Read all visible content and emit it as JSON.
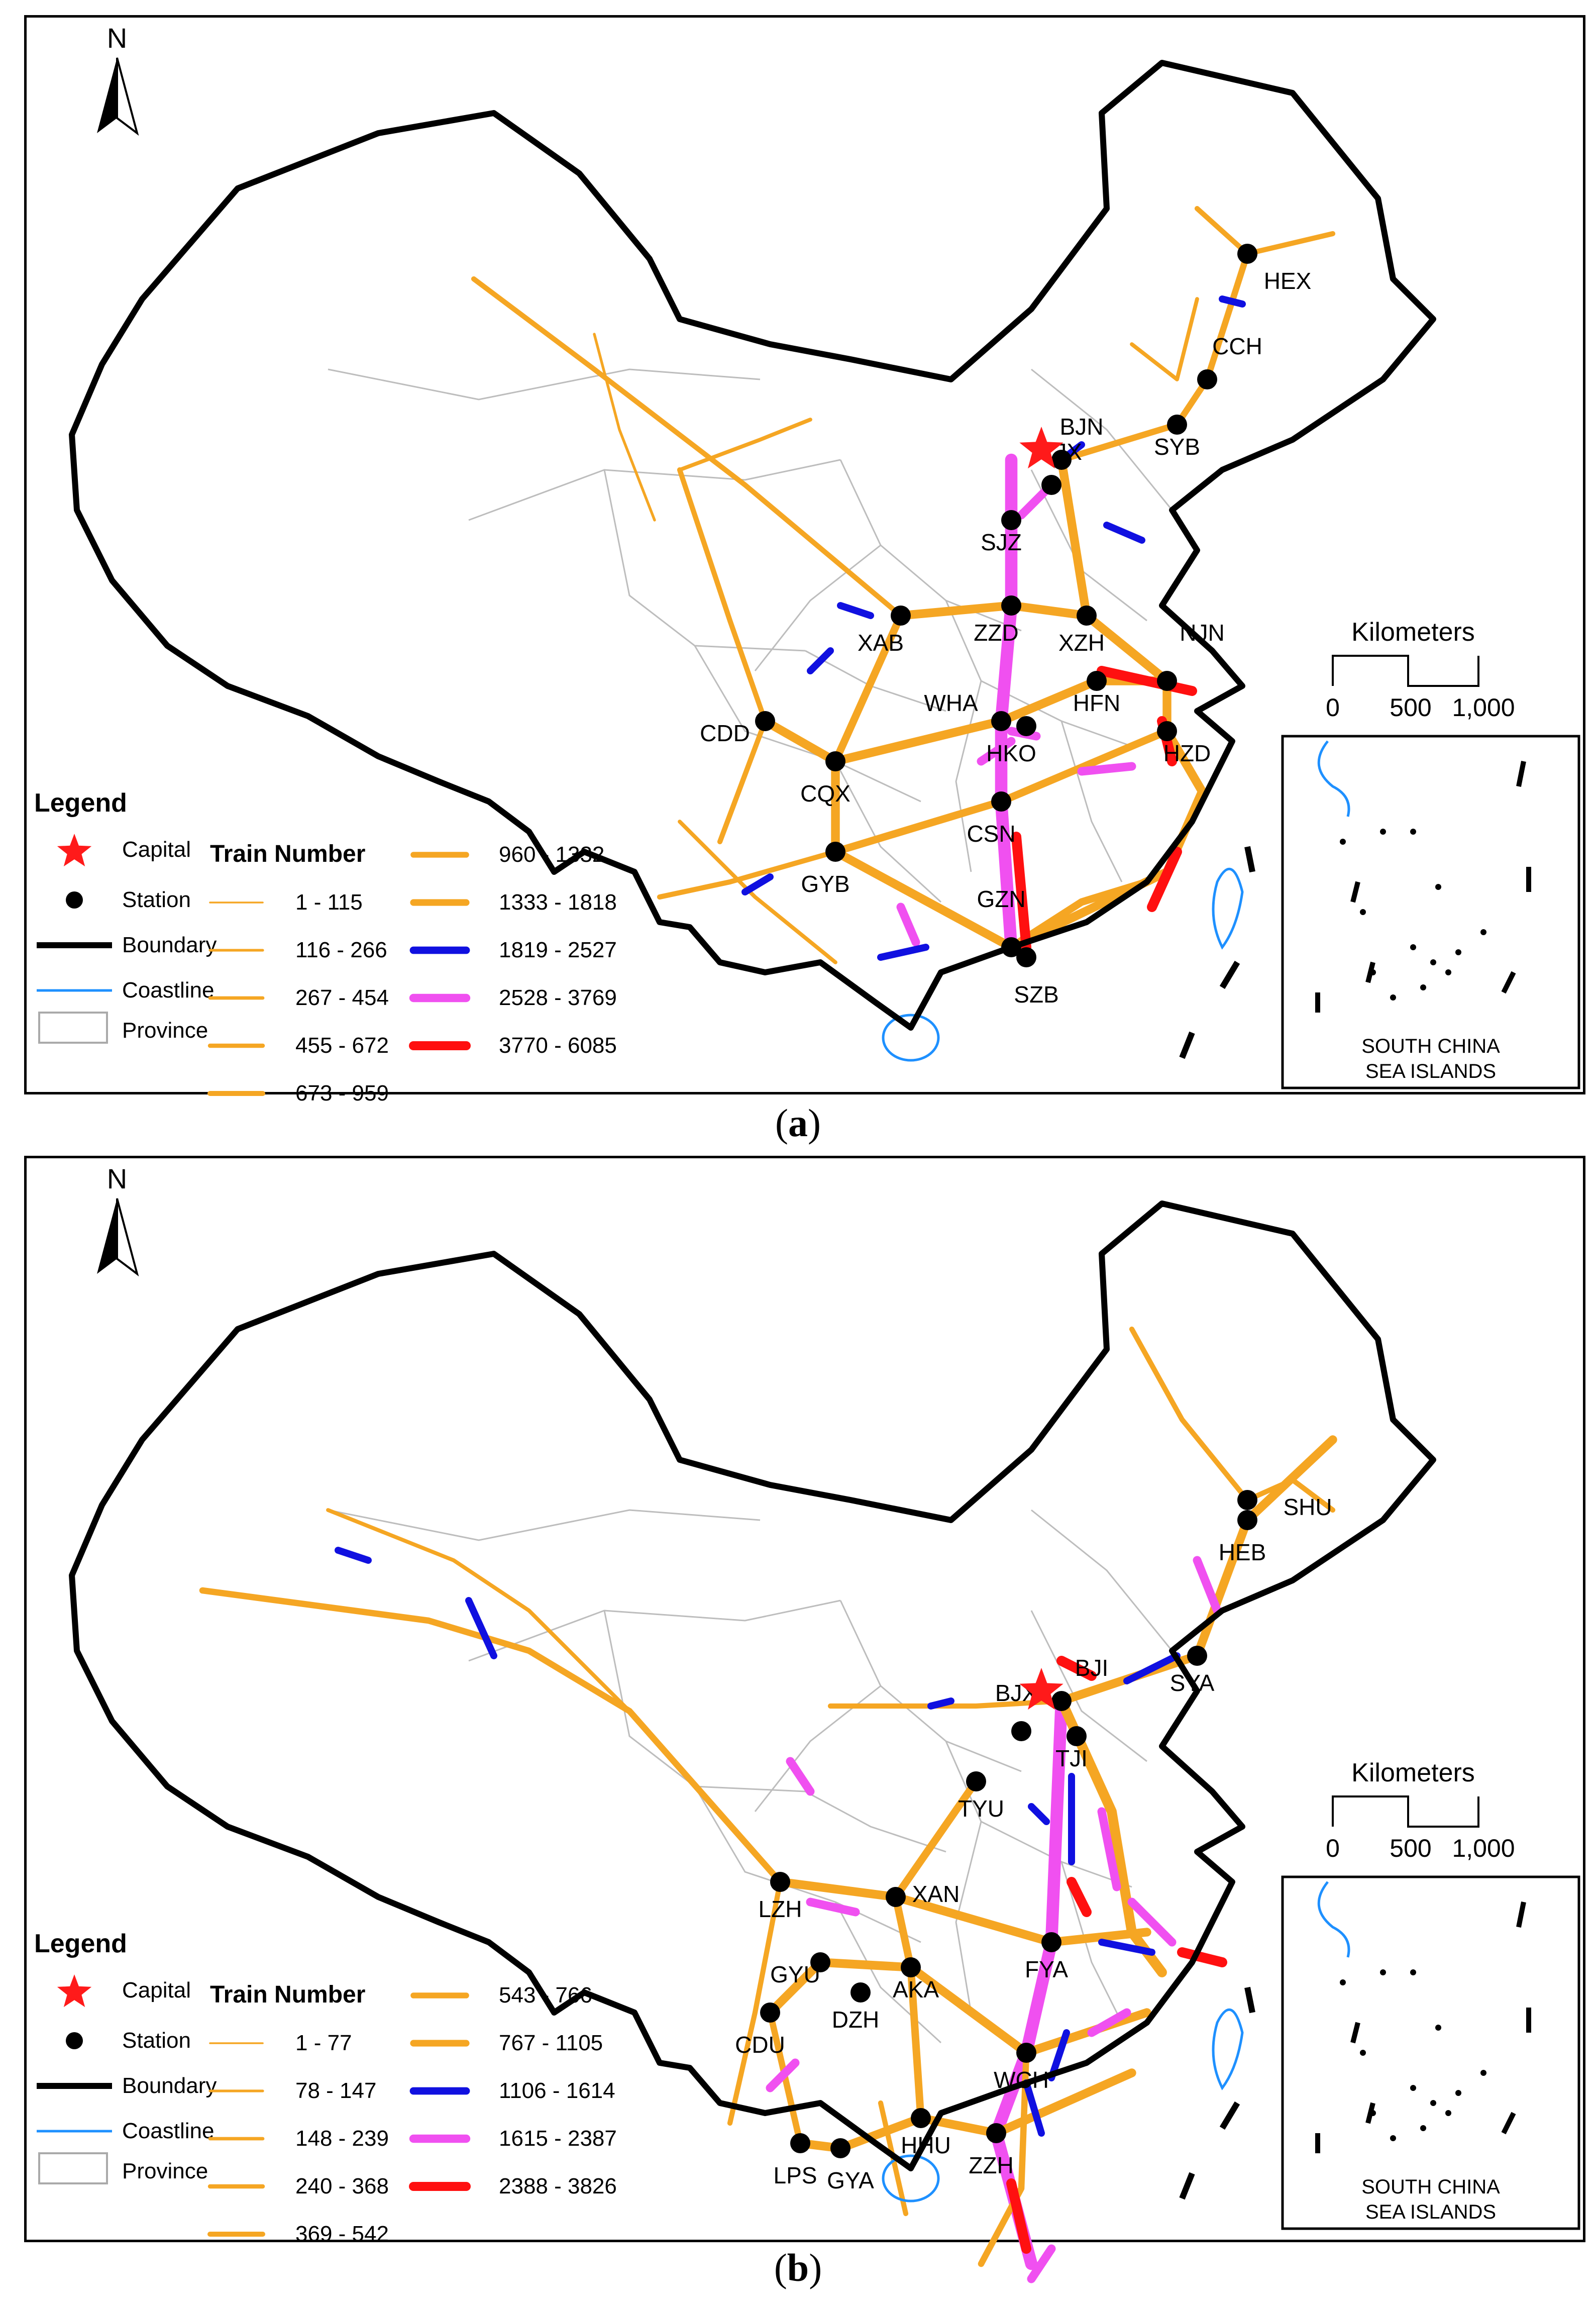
{
  "panels": [
    {
      "id": "a",
      "caption_letter": "a",
      "north_label": "N",
      "scale": {
        "title": "Kilometers",
        "ticks": [
          "0",
          "500",
          "1,000"
        ]
      },
      "inset_label_line1": "SOUTH CHINA",
      "inset_label_line2": "SEA ISLANDS",
      "legend": {
        "title": "Legend",
        "symbols": [
          {
            "label": "Capital",
            "icon": "red-star"
          },
          {
            "label": "Station",
            "icon": "black-dot"
          },
          {
            "label": "Boundary",
            "icon": "thick-black-line"
          },
          {
            "label": "Coastline",
            "icon": "thin-blue-line"
          },
          {
            "label": "Province",
            "icon": "grey-box"
          }
        ],
        "train_number_title": "Train Number",
        "classes": [
          {
            "range": "1 - 115",
            "color": "#f5a623",
            "weight": 1
          },
          {
            "range": "116 - 266",
            "color": "#f5a623",
            "weight": 2
          },
          {
            "range": "267 - 454",
            "color": "#f5a623",
            "weight": 3
          },
          {
            "range": "455 - 672",
            "color": "#f5a623",
            "weight": 4
          },
          {
            "range": "673 - 959",
            "color": "#f5a623",
            "weight": 5
          },
          {
            "range": "960 - 1332",
            "color": "#f5a623",
            "weight": 6
          },
          {
            "range": "1333 - 1818",
            "color": "#f5a623",
            "weight": 7
          },
          {
            "range": "1819 - 2527",
            "color": "#1010e0",
            "weight": 8
          },
          {
            "range": "2528 - 3769",
            "color": "#f050f0",
            "weight": 9
          },
          {
            "range": "3770 - 6085",
            "color": "#ff1010",
            "weight": 10
          }
        ]
      },
      "stations": [
        "HEX",
        "CCH",
        "SYB",
        "BJN",
        "TJX",
        "SJZ",
        "XAB",
        "ZZD",
        "XZH",
        "NJN",
        "WHA",
        "HFN",
        "CDD",
        "HKO",
        "HZD",
        "CQX",
        "CSN",
        "GYB",
        "GZN",
        "SZB"
      ]
    },
    {
      "id": "b",
      "caption_letter": "b",
      "north_label": "N",
      "scale": {
        "title": "Kilometers",
        "ticks": [
          "0",
          "500",
          "1,000"
        ]
      },
      "inset_label_line1": "SOUTH CHINA",
      "inset_label_line2": "SEA ISLANDS",
      "legend": {
        "title": "Legend",
        "symbols": [
          {
            "label": "Capital",
            "icon": "red-star"
          },
          {
            "label": "Station",
            "icon": "black-dot"
          },
          {
            "label": "Boundary",
            "icon": "thick-black-line"
          },
          {
            "label": "Coastline",
            "icon": "thin-blue-line"
          },
          {
            "label": "Province",
            "icon": "grey-box"
          }
        ],
        "train_number_title": "Train Number",
        "classes": [
          {
            "range": "1 - 77",
            "color": "#f5a623",
            "weight": 1
          },
          {
            "range": "78 - 147",
            "color": "#f5a623",
            "weight": 2
          },
          {
            "range": "148 - 239",
            "color": "#f5a623",
            "weight": 3
          },
          {
            "range": "240 - 368",
            "color": "#f5a623",
            "weight": 4
          },
          {
            "range": "369 - 542",
            "color": "#f5a623",
            "weight": 5
          },
          {
            "range": "543 - 766",
            "color": "#f5a623",
            "weight": 6
          },
          {
            "range": "767 - 1105",
            "color": "#f5a623",
            "weight": 7
          },
          {
            "range": "1106 - 1614",
            "color": "#1010e0",
            "weight": 8
          },
          {
            "range": "1615 - 2387",
            "color": "#f050f0",
            "weight": 9
          },
          {
            "range": "2388 - 3826",
            "color": "#ff1010",
            "weight": 10
          }
        ]
      },
      "stations": [
        "SHU",
        "HEB",
        "SYA",
        "BJI",
        "BJX",
        "TJI",
        "TYU",
        "LZH",
        "XAN",
        "FYA",
        "GYU",
        "AKA",
        "DZH",
        "CDU",
        "WCH",
        "LPS",
        "GYA",
        "HHU",
        "ZZH"
      ]
    }
  ],
  "colors": {
    "rail_orange": "#f5a623",
    "rail_blue": "#1010e0",
    "rail_magenta": "#f050f0",
    "rail_red": "#ff1010",
    "capital": "#ff1a1a",
    "coast": "#1e90ff",
    "province": "#bdbdbd",
    "boundary": "#000000"
  }
}
